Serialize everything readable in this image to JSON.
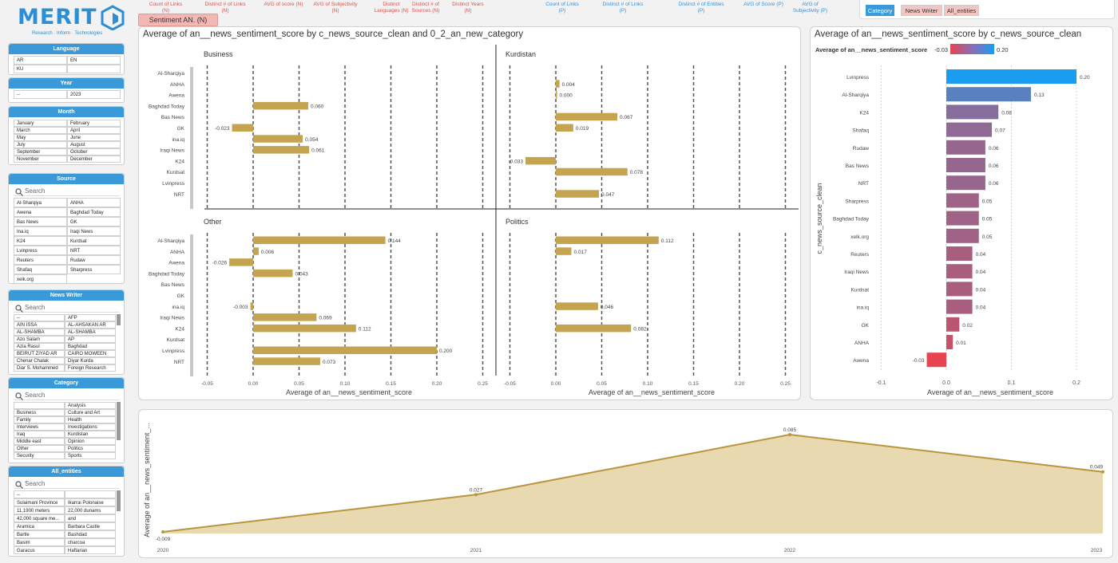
{
  "logo": {
    "text": "MERIT",
    "tagline": "Research · Inform · Technologies"
  },
  "top_links": [
    {
      "label": "Count of Links (N)",
      "color": "red"
    },
    {
      "label": "Distinct # of Links (N)",
      "color": "red"
    },
    {
      "label": "AVG of score (N)",
      "color": "red"
    },
    {
      "label": "AVG of Subjectivity (N)",
      "color": "red"
    },
    {
      "label": "Distinct Languages (N)",
      "color": "red"
    },
    {
      "label": "Distinct # of Sources (N)",
      "color": "red"
    },
    {
      "label": "Distinct Years (N)",
      "color": "red"
    },
    {
      "label": "Count of Links (P)",
      "color": "blue"
    },
    {
      "label": "Distinct # of Links (P)",
      "color": "blue"
    },
    {
      "label": "Distinct # of Entities (P)",
      "color": "blue"
    },
    {
      "label": "AVG of Score (P)",
      "color": "blue"
    },
    {
      "label": "AVG of Subjectivity (P)",
      "color": "blue"
    }
  ],
  "sentiment_tab": "Sentiment AN. (N)",
  "toggles": {
    "category": "Category",
    "news_writer": "News Writer",
    "all_entities": "All_entities"
  },
  "slicers": {
    "language": {
      "title": "Language",
      "items": [
        "AR",
        "EN",
        "KU"
      ]
    },
    "year": {
      "title": "Year",
      "items": [
        "--",
        "2023"
      ]
    },
    "month": {
      "title": "Month",
      "items": [
        "January",
        "February",
        "March",
        "April",
        "May",
        "June",
        "July",
        "August",
        "September",
        "October",
        "November",
        "December"
      ]
    },
    "source": {
      "title": "Source",
      "search": "Search",
      "items": [
        "Al-Sharqiya",
        "ANHA",
        "Awena",
        "Baghdad Today",
        "Bas News",
        "GK",
        "Ina.iq",
        "Iraqi News",
        "K24",
        "Kurdsat",
        "Lvinpress",
        "NRT",
        "Reuters",
        "Rudaw",
        "Shafaq",
        "Sharpress",
        "xelk.org"
      ]
    },
    "news_writer": {
      "title": "News Writer",
      "search": "Search",
      "items": [
        "--",
        "AFP",
        "AIN ISSA",
        "AL-AHSAKAN AR",
        "AL-SHAMBA",
        "AL-SHAMBA",
        "Azo Salam",
        "AP",
        "Azia Rasul",
        "Baghdad",
        "BEIRUT ZIYAD AR",
        "CAIRO MOWEEN",
        "Chenar Chalak",
        "Diyar Kurda",
        "Diar S. Mohammed",
        "Foreign Research"
      ]
    },
    "category": {
      "title": "Category",
      "search": "Search",
      "items": [
        "",
        "Analysis",
        "Business",
        "Culture and Art",
        "Family",
        "Health",
        "Interviews",
        "Investigations",
        "Iraq",
        "Kurdistan",
        "Middle east",
        "Opinion",
        "Other",
        "Politics",
        "Security",
        "Sports"
      ]
    },
    "all_entities": {
      "title": "All_entities",
      "search": "Search",
      "items": [
        "--",
        "",
        "Sulaimani Province",
        "Ikarrai Polonaise",
        "11,1900 meters",
        "22,000 dunams",
        "42,000 square me...",
        "and",
        "Aramica",
        "Barbara Castle",
        "Bartle",
        "Bashdad",
        "Basim",
        "charcoa",
        "Garacus",
        "Haftarian"
      ]
    }
  },
  "chart_data": [
    {
      "type": "bar",
      "title": "Average of an__news_sentiment_score by c_news_source_clean and 0_2_an_new_category",
      "xlabel": "Average of an__news_sentiment_score",
      "xlim": [
        -0.05,
        0.25
      ],
      "xticks": [
        "-0.05",
        "0.00",
        "0.05",
        "0.10",
        "0.15",
        "0.20",
        "0.25"
      ],
      "facets": [
        {
          "name": "Business",
          "categories": [
            "Al-Sharqiya",
            "ANHA",
            "Awena",
            "Baghdad Today",
            "Bas News",
            "GK",
            "ina.iq",
            "Iraqi News",
            "K24",
            "Kurdsat",
            "Lvinpress",
            "NRT"
          ],
          "values": [
            null,
            null,
            null,
            0.06,
            null,
            -0.023,
            0.054,
            0.061,
            null,
            null,
            null,
            null
          ],
          "labels": [
            "",
            "",
            "",
            "0.060",
            "",
            "-0.023",
            "0.054",
            "0.061",
            "",
            "",
            "",
            ""
          ]
        },
        {
          "name": "Kurdistan",
          "categories": [
            "Al-Sharqiya",
            "ANHA",
            "Awena",
            "Baghdad Today",
            "Bas News",
            "GK",
            "ina.iq",
            "Iraqi News",
            "K24",
            "Kurdsat",
            "Lvinpress",
            "NRT"
          ],
          "values": [
            null,
            0.004,
            0.0,
            null,
            0.067,
            0.019,
            null,
            null,
            -0.033,
            0.078,
            null,
            0.047
          ],
          "labels": [
            "",
            "0.004",
            "0.000",
            "",
            "0.067",
            "0.019",
            "",
            "",
            "-0.033",
            "0.078",
            "",
            "0.047"
          ]
        },
        {
          "name": "Other",
          "categories": [
            "Al-Sharqiya",
            "ANHA",
            "Awena",
            "Baghdad Today",
            "Bas News",
            "GK",
            "ina.iq",
            "Iraqi News",
            "K24",
            "Kurdsat",
            "Lvinpress",
            "NRT"
          ],
          "values": [
            0.144,
            0.006,
            -0.026,
            0.043,
            null,
            null,
            -0.003,
            0.069,
            0.112,
            null,
            0.2,
            0.073
          ],
          "labels": [
            "0.144",
            "0.006",
            "-0.026",
            "0.043",
            "",
            "",
            "-0.003",
            "0.069",
            "0.112",
            "",
            "0.200",
            "0.073"
          ]
        },
        {
          "name": "Politics",
          "categories": [
            "Al-Sharqiya",
            "ANHA",
            "Awena",
            "Baghdad Today",
            "Bas News",
            "GK",
            "ina.iq",
            "Iraqi News",
            "K24",
            "Kurdsat",
            "Lvinpress",
            "NRT"
          ],
          "values": [
            0.112,
            0.017,
            null,
            null,
            null,
            null,
            0.046,
            null,
            0.082,
            null,
            null,
            null
          ],
          "labels": [
            "0.112",
            "0.017",
            "",
            "",
            "",
            "",
            "0.046",
            "",
            "0.082",
            "",
            "",
            ""
          ]
        }
      ],
      "colors": {
        "bar": "#c4a44f"
      }
    },
    {
      "type": "bar",
      "title": "Average of an__news_sentiment_score by c_news_source_clean",
      "legend_title": "Average of an__news_sentiment_score",
      "legend_min": "-0.03",
      "legend_max": "0.20",
      "xlabel": "Average of an__news_sentiment_score",
      "ylabel": "c_news_source_clean",
      "xlim": [
        -0.1,
        0.2
      ],
      "xticks": [
        "-0.1",
        "0.0",
        "0.1",
        "0.2"
      ],
      "categories": [
        "Lvinpress",
        "Al-Sharqiya",
        "K24",
        "Shafaq",
        "Rudaw",
        "Bas News",
        "NRT",
        "Sharpress",
        "Baghdad Today",
        "xelk.org",
        "Reuters",
        "Iraqi News",
        "Kurdsat",
        "ina.iq",
        "GK",
        "ANHA",
        "Awena"
      ],
      "values": [
        0.2,
        0.13,
        0.08,
        0.07,
        0.06,
        0.06,
        0.06,
        0.05,
        0.05,
        0.05,
        0.04,
        0.04,
        0.04,
        0.04,
        0.02,
        0.01,
        -0.03
      ],
      "labels": [
        "0.20",
        "0.13",
        "0.08",
        "0.07",
        "0.06",
        "0.06",
        "0.06",
        "0.05",
        "0.05",
        "0.05",
        "0.04",
        "0.04",
        "0.04",
        "0.04",
        "0.02",
        "0.01",
        "-0.03"
      ],
      "colors": {
        "low": "#e8434f",
        "high": "#1a9cf0"
      }
    },
    {
      "type": "area",
      "ylabel": "Average of an__news_sentiment_...",
      "x": [
        "2020",
        "2021",
        "2022",
        "2023"
      ],
      "values": [
        -0.009,
        0.027,
        0.085,
        0.049
      ],
      "labels": [
        "-0.009",
        "0.027",
        "0.085",
        "0.049"
      ],
      "colors": {
        "line": "#b8963e",
        "fill": "#e8d9b0"
      }
    }
  ]
}
